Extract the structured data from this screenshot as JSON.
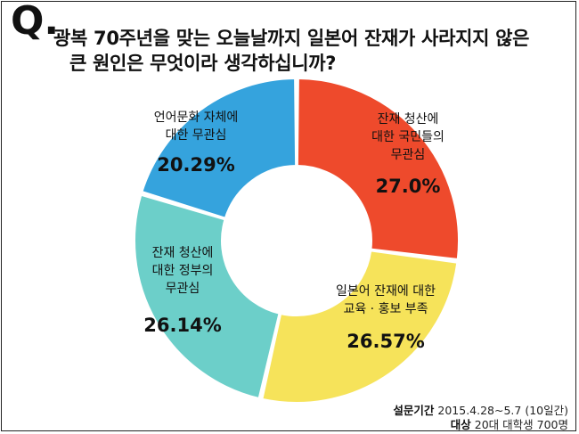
{
  "question": {
    "mark": "Q.",
    "line1": "광복 70주년을 맞는 오늘날까지 일본어 잔재가 사라지지 않은",
    "line2": "큰 원인은 무엇이라 생각하십니까?"
  },
  "chart_data": {
    "type": "pie",
    "style": "donut",
    "slices": [
      {
        "label_lines": [
          "잔재 청산에",
          "대한 국민들의",
          "무관심"
        ],
        "value": 27.0,
        "value_text": "27.0%",
        "color": "#ee4a2c"
      },
      {
        "label_lines": [
          "일본어 잔재에 대한",
          "교육 · 홍보 부족"
        ],
        "value": 26.57,
        "value_text": "26.57%",
        "color": "#f6e35a"
      },
      {
        "label_lines": [
          "잔재 청산에",
          "대한 정부의",
          "무관심"
        ],
        "value": 26.14,
        "value_text": "26.14%",
        "color": "#6ccfc9"
      },
      {
        "label_lines": [
          "언어문화 자체에",
          "대한 무관심"
        ],
        "value": 20.29,
        "value_text": "20.29%",
        "color": "#35a3dd"
      }
    ]
  },
  "notes": {
    "period_label": "설문기간",
    "period_value": "2015.4.28~5.7 (10일간)",
    "target_label": "대상",
    "target_value": "20대 대학생 700명"
  }
}
